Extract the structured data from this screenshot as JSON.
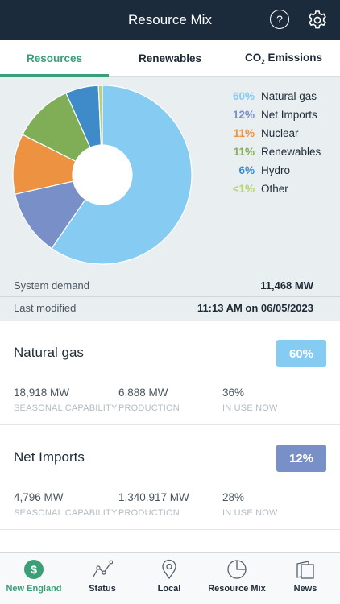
{
  "header": {
    "title": "Resource Mix",
    "help_label": "?"
  },
  "tabs": [
    {
      "label": "Resources",
      "active": true
    },
    {
      "label": "Renewables",
      "active": false
    },
    {
      "label_main": "CO",
      "label_sub": "2",
      "label_rest": " Emissions",
      "active": false
    }
  ],
  "colors": {
    "accent": "#3a9f77",
    "header_bg": "#1b2b3c",
    "natural_gas": "#85cbf2",
    "net_imports": "#788fc8",
    "nuclear": "#ec9241",
    "renewables": "#7fae57",
    "hydro": "#3f8bc9",
    "other": "#b7d36f"
  },
  "chart_data": {
    "type": "pie",
    "style": "donut",
    "slices": [
      {
        "label": "Natural gas",
        "value": 60,
        "display": "60%",
        "color": "#85cbf2"
      },
      {
        "label": "Net Imports",
        "value": 12,
        "display": "12%",
        "color": "#788fc8"
      },
      {
        "label": "Nuclear",
        "value": 11,
        "display": "11%",
        "color": "#ec9241"
      },
      {
        "label": "Renewables",
        "value": 11,
        "display": "11%",
        "color": "#7fae57"
      },
      {
        "label": "Hydro",
        "value": 6,
        "display": "6%",
        "color": "#3f8bc9"
      },
      {
        "label": "Other",
        "value": 0.7,
        "display": "<1%",
        "color": "#b7d36f"
      }
    ]
  },
  "summary": {
    "system_demand_label": "System demand",
    "system_demand_value": "11,468 MW",
    "last_modified_label": "Last modified",
    "last_modified_value": "11:13 AM on 06/05/2023"
  },
  "cards": [
    {
      "title": "Natural gas",
      "badge": "60%",
      "badge_color": "#85cbf2",
      "metrics": [
        {
          "value": "18,918 MW",
          "label": "SEASONAL CAPABILITY"
        },
        {
          "value": "6,888 MW",
          "label": "PRODUCTION"
        },
        {
          "value": "36%",
          "label": "IN USE NOW"
        }
      ]
    },
    {
      "title": "Net Imports",
      "badge": "12%",
      "badge_color": "#788fc8",
      "metrics": [
        {
          "value": "4,796 MW",
          "label": "SEASONAL CAPABILITY"
        },
        {
          "value": "1,340.917 MW",
          "label": "PRODUCTION"
        },
        {
          "value": "28%",
          "label": "IN USE NOW"
        }
      ]
    }
  ],
  "nav": [
    {
      "label": "New England",
      "icon": "dollar-icon",
      "active": true
    },
    {
      "label": "Status",
      "icon": "status-chart-icon",
      "active": false
    },
    {
      "label": "Local",
      "icon": "map-pin-icon",
      "active": false
    },
    {
      "label": "Resource Mix",
      "icon": "pie-chart-icon",
      "active": false
    },
    {
      "label": "News",
      "icon": "news-icon",
      "active": false
    }
  ]
}
